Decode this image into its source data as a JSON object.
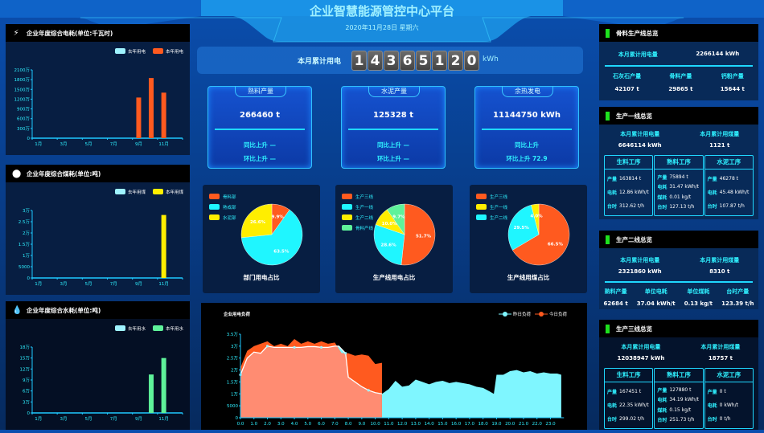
{
  "header": {
    "title": "企业智慧能源管控中心平台",
    "date": "2020年11月28日 星期六"
  },
  "counter": {
    "label": "本月累计用电",
    "digits": [
      "1",
      "4",
      "3",
      "6",
      "5",
      "1",
      "2",
      "0"
    ],
    "unit": "kWh"
  },
  "kpis": [
    {
      "title": "熟料产量",
      "value": "266460 t",
      "yoy": "同比上升 —",
      "mom": "环比上升 —"
    },
    {
      "title": "水泥产量",
      "value": "125328 t",
      "yoy": "同比上升 —",
      "mom": "环比上升 —"
    },
    {
      "title": "余热发电",
      "value": "11144750 kWh",
      "yoy": "同比上升",
      "mom": "环比上升 72.9"
    }
  ],
  "icons": {
    "electricity": "lightning-icon",
    "coal": "circle-icon",
    "water": "water-drop-icon"
  },
  "colors": {
    "orange": "#ff5a1f",
    "cyan": "#1ff6ff",
    "yellow": "#ffee00",
    "green": "#5ef29a",
    "last_year": "#9ff3ff",
    "accent": "#2ff0ff"
  },
  "chart_data": [
    {
      "type": "bar",
      "title": "企业年度综合电耗(单位:千瓦时)",
      "categories": [
        "1月",
        "2月",
        "3月",
        "4月",
        "5月",
        "6月",
        "7月",
        "8月",
        "9月",
        "10月",
        "11月",
        "12月"
      ],
      "x_tick_labels": [
        "1月",
        "3月",
        "5月",
        "7月",
        "9月",
        "11月"
      ],
      "series": [
        {
          "name": "去年用电",
          "color": "#9ff3ff",
          "values": [
            null,
            null,
            null,
            null,
            null,
            null,
            null,
            null,
            null,
            null,
            null,
            null
          ]
        },
        {
          "name": "本年用电",
          "color": "#ff5a1f",
          "values": [
            null,
            null,
            null,
            null,
            null,
            null,
            null,
            null,
            1250,
            1850,
            1400,
            null
          ]
        }
      ],
      "ylim": [
        0,
        2100
      ],
      "y_ticks": [
        0,
        300,
        600,
        900,
        1200,
        1500,
        1800,
        2100
      ],
      "y_tick_labels": [
        "0",
        "300万",
        "600万",
        "900万",
        "1200万",
        "1500万",
        "1800万",
        "2100万"
      ],
      "legend": "top-right"
    },
    {
      "type": "bar",
      "title": "企业年度综合煤耗(单位:吨)",
      "categories": [
        "1月",
        "2月",
        "3月",
        "4月",
        "5月",
        "6月",
        "7月",
        "8月",
        "9月",
        "10月",
        "11月",
        "12月"
      ],
      "x_tick_labels": [
        "1月",
        "3月",
        "5月",
        "7月",
        "9月",
        "11月"
      ],
      "series": [
        {
          "name": "去年用煤",
          "color": "#9ff3ff",
          "values": [
            null,
            null,
            null,
            null,
            null,
            null,
            null,
            null,
            null,
            null,
            null,
            null
          ]
        },
        {
          "name": "本年用煤",
          "color": "#ffee00",
          "values": [
            null,
            null,
            null,
            null,
            null,
            null,
            null,
            null,
            null,
            null,
            28000,
            null
          ]
        }
      ],
      "ylim": [
        0,
        30000
      ],
      "y_ticks": [
        0,
        5000,
        10000,
        15000,
        20000,
        25000,
        30000
      ],
      "y_tick_labels": [
        "0",
        "5000",
        "1万",
        "1.5万",
        "2万",
        "2.5万",
        "3万"
      ],
      "legend": "top-right"
    },
    {
      "type": "bar",
      "title": "企业年度综合水耗(单位:吨)",
      "categories": [
        "1月",
        "2月",
        "3月",
        "4月",
        "5月",
        "6月",
        "7月",
        "8月",
        "9月",
        "10月",
        "11月",
        "12月"
      ],
      "x_tick_labels": [
        "1月",
        "3月",
        "5月",
        "7月",
        "9月",
        "11月"
      ],
      "series": [
        {
          "name": "去年用水",
          "color": "#9ff3ff",
          "values": [
            null,
            null,
            null,
            null,
            null,
            null,
            null,
            null,
            null,
            null,
            null,
            null
          ]
        },
        {
          "name": "本年用水",
          "color": "#5ef29a",
          "values": [
            null,
            null,
            null,
            null,
            null,
            null,
            null,
            null,
            null,
            105000,
            150000,
            null
          ]
        }
      ],
      "ylim": [
        0,
        180000
      ],
      "y_ticks": [
        0,
        30000,
        60000,
        90000,
        120000,
        150000,
        180000
      ],
      "y_tick_labels": [
        "0",
        "3万",
        "6万",
        "9万",
        "12万",
        "15万",
        "18万"
      ],
      "legend": "top-right"
    },
    {
      "type": "pie",
      "title": "部门用电占比",
      "legend": "top-left",
      "slices": [
        {
          "name": "骨料部",
          "value": 9.9,
          "label": "9.9%",
          "color": "#ff5a1f"
        },
        {
          "name": "熟成部",
          "value": 63.5,
          "label": "63.5%",
          "color": "#1ff6ff"
        },
        {
          "name": "水泥部",
          "value": 26.6,
          "label": "26.6%",
          "color": "#ffee00"
        }
      ]
    },
    {
      "type": "pie",
      "title": "生产线用电占比",
      "legend": "top-left",
      "slices": [
        {
          "name": "生产三线",
          "value": 51.7,
          "label": "51.7%",
          "color": "#ff5a1f"
        },
        {
          "name": "生产一线",
          "value": 28.6,
          "label": "28.6%",
          "color": "#1ff6ff"
        },
        {
          "name": "生产二线",
          "value": 10.0,
          "label": "10.0%",
          "color": "#ffee00"
        },
        {
          "name": "骨料产线",
          "value": 9.7,
          "label": "9.7%",
          "color": "#5ef29a"
        }
      ]
    },
    {
      "type": "pie",
      "title": "生产线用煤占比",
      "legend": "top-left",
      "slices": [
        {
          "name": "生产三线",
          "value": 66.5,
          "label": "66.5%",
          "color": "#ff5a1f"
        },
        {
          "name": "生产二线",
          "value": 29.5,
          "label": "29.5%",
          "color": "#1ff6ff"
        },
        {
          "name": "生产一线",
          "value": 4.0,
          "label": "4.0%",
          "color": "#ffee00"
        }
      ],
      "legend_order": [
        "生产三线",
        "生产一线",
        "生产二线"
      ]
    },
    {
      "type": "area",
      "title": "企业用电负荷",
      "legend": "top-right",
      "xlim": [
        0,
        24
      ],
      "x_tick_labels": [
        "0.0",
        "1.0",
        "2.0",
        "3.0",
        "4.0",
        "5.0",
        "6.0",
        "7.0",
        "8.0",
        "9.0",
        "10.0",
        "11.0",
        "12.0",
        "13.0",
        "14.0",
        "15.0",
        "16.0",
        "17.0",
        "18.0",
        "19.0",
        "20.0",
        "21.0",
        "22.0",
        "23.0"
      ],
      "ylim": [
        0,
        35000
      ],
      "y_ticks": [
        0,
        5000,
        10000,
        15000,
        20000,
        25000,
        30000,
        35000
      ],
      "y_tick_labels": [
        "0",
        "5000",
        "1万",
        "1.5万",
        "2万",
        "2.5万",
        "3万",
        "3.5万"
      ],
      "series": [
        {
          "name": "昨日负荷",
          "color": "#7ff6ff",
          "x": [
            0,
            0.5,
            1,
            1.5,
            2,
            2.5,
            3,
            3.5,
            4,
            4.5,
            5,
            5.5,
            6,
            6.5,
            7,
            7.3,
            7.8,
            8,
            8.5,
            9,
            9.5,
            10,
            10.5,
            11,
            11.5,
            12,
            12.5,
            13,
            13.5,
            14,
            14.5,
            15,
            15.5,
            16,
            16.5,
            17,
            17.5,
            18,
            18.5,
            18.8,
            19,
            19.5,
            20,
            20.5,
            21,
            21.5,
            22,
            22.5,
            23,
            23.5,
            23.8
          ],
          "y": [
            18000,
            25000,
            27500,
            27000,
            30000,
            29500,
            29500,
            29500,
            29500,
            29500,
            29800,
            29800,
            29500,
            29500,
            30000,
            30000,
            27000,
            17000,
            15000,
            13000,
            11500,
            10500,
            10000,
            12000,
            15500,
            13000,
            13500,
            16000,
            15000,
            14000,
            15000,
            15500,
            14500,
            15000,
            14500,
            14000,
            13000,
            12500,
            11000,
            10000,
            18000,
            18000,
            19500,
            20000,
            19000,
            19500,
            18500,
            19000,
            18500,
            18500,
            18000
          ]
        },
        {
          "name": "今日负荷",
          "color": "#ff5a1f",
          "x": [
            0,
            0.5,
            1,
            1.5,
            2,
            2.5,
            3,
            3.5,
            4,
            4.5,
            5,
            5.5,
            6,
            6.5,
            7,
            7.5,
            8,
            8.5,
            9,
            9.5,
            10,
            10.5
          ],
          "y": [
            21000,
            28000,
            30000,
            31000,
            32000,
            30000,
            31000,
            30000,
            33000,
            31000,
            32000,
            31000,
            32000,
            31000,
            31500,
            27000,
            27000,
            26000,
            26500,
            26000,
            22500,
            23000
          ]
        }
      ]
    }
  ],
  "right": {
    "p1": {
      "title": "骨料生产线总览",
      "elec_label": "本月累计用电量",
      "elec_value": "2266144 kWh",
      "items": [
        {
          "label": "石灰石产量",
          "value": "42107 t"
        },
        {
          "label": "骨料产量",
          "value": "29865 t"
        },
        {
          "label": "钙粉产量",
          "value": "15644 t"
        }
      ]
    },
    "p2": {
      "title": "生产一线总览",
      "elec_label": "本月累计用电量",
      "elec_value": "6646114 kWh",
      "coal_label": "本月累计用煤量",
      "coal_value": "1121 t",
      "cols": [
        {
          "head": "生料工序",
          "rows": [
            {
              "k": "产量",
              "v": "163814 t"
            },
            {
              "k": "电耗",
              "v": "12.86 kWh/t"
            },
            {
              "k": "台时",
              "v": "312.62 t/h"
            }
          ]
        },
        {
          "head": "熟料工序",
          "rows": [
            {
              "k": "产量",
              "v": "75894 t"
            },
            {
              "k": "电耗",
              "v": "31.47 kWh/t"
            },
            {
              "k": "煤耗",
              "v": "0.01 kg/t"
            },
            {
              "k": "台时",
              "v": "127.13 t/h"
            }
          ]
        },
        {
          "head": "水泥工序",
          "rows": [
            {
              "k": "产量",
              "v": "46278 t"
            },
            {
              "k": "电耗",
              "v": "45.48 kWh/t"
            },
            {
              "k": "台时",
              "v": "107.87 t/h"
            }
          ]
        }
      ]
    },
    "p3": {
      "title": "生产二线总览",
      "elec_label": "本月累计用电量",
      "elec_value": "2321860 kWh",
      "coal_label": "本月累计用煤量",
      "coal_value": "8310 t",
      "items": [
        {
          "label": "熟料产量",
          "value": "62684 t"
        },
        {
          "label": "单位电耗",
          "value": "37.04 kWh/t"
        },
        {
          "label": "单位煤耗",
          "value": "0.13 kg/t"
        },
        {
          "label": "台时产量",
          "value": "123.39 t/h"
        }
      ]
    },
    "p4": {
      "title": "生产三线总览",
      "elec_label": "本月累计用电量",
      "elec_value": "12038947 kWh",
      "coal_label": "本月累计用煤量",
      "coal_value": "18757 t",
      "cols": [
        {
          "head": "生料工序",
          "rows": [
            {
              "k": "产量",
              "v": "167451 t"
            },
            {
              "k": "电耗",
              "v": "22.35 kWh/t"
            },
            {
              "k": "台时",
              "v": "299.02 t/h"
            }
          ]
        },
        {
          "head": "熟料工序",
          "rows": [
            {
              "k": "产量",
              "v": "127880 t"
            },
            {
              "k": "电耗",
              "v": "34.19 kWh/t"
            },
            {
              "k": "煤耗",
              "v": "0.15 kg/t"
            },
            {
              "k": "台时",
              "v": "251.73 t/h"
            }
          ]
        },
        {
          "head": "水泥工序",
          "rows": [
            {
              "k": "产量",
              "v": "0 t"
            },
            {
              "k": "电耗",
              "v": "0 kWh/t"
            },
            {
              "k": "台时",
              "v": "0 t/h"
            }
          ]
        }
      ]
    }
  }
}
